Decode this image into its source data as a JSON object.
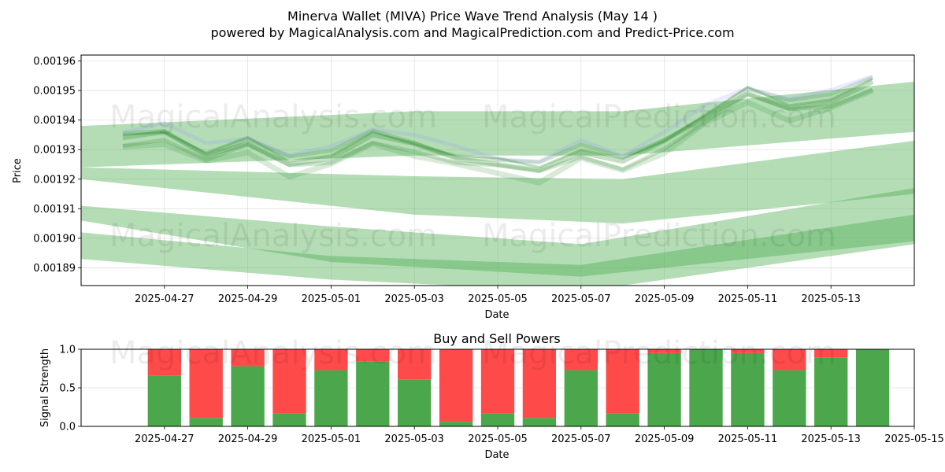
{
  "header": {
    "title": "Minerva Wallet (MIVA) Price Wave Trend Analysis (May 14 )",
    "subtitle": "powered by MagicalAnalysis.com and MagicalPrediction.com and Predict-Price.com"
  },
  "watermarks": [
    "MagicalAnalysis.com",
    "MagicalPrediction.com"
  ],
  "chart_data": [
    {
      "type": "line",
      "xlabel": "Date",
      "ylabel": "Price",
      "xlim": [
        "2025-04-25",
        "2025-05-15"
      ],
      "ylim": [
        0.001884,
        0.001962
      ],
      "x_ticks": [
        "2025-04-27",
        "2025-04-29",
        "2025-05-01",
        "2025-05-03",
        "2025-05-05",
        "2025-05-07",
        "2025-05-09",
        "2025-05-11",
        "2025-05-13"
      ],
      "y_ticks": [
        0.00189,
        0.0019,
        0.00191,
        0.00192,
        0.00193,
        0.00194,
        0.00195,
        0.00196
      ],
      "grid": true,
      "colors": {
        "band": "#4caf50",
        "wave": "#2e8b2e",
        "wave_alt": "#8f8fff"
      },
      "x": [
        "2025-04-26",
        "2025-04-27",
        "2025-04-28",
        "2025-04-29",
        "2025-04-30",
        "2025-05-01",
        "2025-05-02",
        "2025-05-03",
        "2025-05-04",
        "2025-05-05",
        "2025-05-06",
        "2025-05-07",
        "2025-05-08",
        "2025-05-09",
        "2025-05-10",
        "2025-05-11",
        "2025-05-12",
        "2025-05-13",
        "2025-05-14"
      ],
      "center": [
        0.001934,
        0.001936,
        0.001928,
        0.001932,
        0.001925,
        0.001927,
        0.001935,
        0.001932,
        0.001927,
        0.001925,
        0.001923,
        0.001929,
        0.001926,
        0.001933,
        0.001941,
        0.001949,
        0.001944,
        0.001946,
        0.001953
      ],
      "bands": [
        {
          "x": [
            "2025-04-25",
            "2025-05-03",
            "2025-05-08",
            "2025-05-15"
          ],
          "top": [
            0.001938,
            0.001943,
            0.001943,
            0.001953
          ],
          "bottom": [
            0.001924,
            0.001928,
            0.001928,
            0.001936
          ]
        },
        {
          "x": [
            "2025-04-25",
            "2025-05-03",
            "2025-05-08",
            "2025-05-15"
          ],
          "top": [
            0.001924,
            0.001921,
            0.00192,
            0.001933
          ],
          "bottom": [
            0.00192,
            0.001908,
            0.001905,
            0.001915
          ]
        },
        {
          "x": [
            "2025-04-25",
            "2025-05-01",
            "2025-05-07",
            "2025-05-15"
          ],
          "top": [
            0.001911,
            0.001904,
            0.001898,
            0.001917
          ],
          "bottom": [
            0.001906,
            0.001892,
            0.001887,
            0.001899
          ]
        },
        {
          "x": [
            "2025-04-25",
            "2025-05-01",
            "2025-05-07",
            "2025-05-15"
          ],
          "top": [
            0.001902,
            0.001894,
            0.001891,
            0.001908
          ],
          "bottom": [
            0.001893,
            0.001886,
            0.001882,
            0.001898
          ]
        }
      ]
    },
    {
      "type": "bar",
      "title": "Buy and Sell Powers",
      "xlabel": "Date",
      "ylabel": "Signal Strength",
      "xlim": [
        "2025-04-25",
        "2025-05-15"
      ],
      "ylim": [
        0,
        1.0
      ],
      "x_ticks": [
        "2025-04-27",
        "2025-04-29",
        "2025-05-01",
        "2025-05-03",
        "2025-05-05",
        "2025-05-07",
        "2025-05-09",
        "2025-05-11",
        "2025-05-13",
        "2025-05-15"
      ],
      "y_ticks": [
        "0.0",
        "0.5",
        "1.0"
      ],
      "grid": true,
      "colors": {
        "buy": "#4ca64c",
        "sell": "#ff4a4a"
      },
      "categories": [
        "2025-04-27",
        "2025-04-28",
        "2025-04-29",
        "2025-04-30",
        "2025-05-01",
        "2025-05-02",
        "2025-05-03",
        "2025-05-04",
        "2025-05-05",
        "2025-05-06",
        "2025-05-07",
        "2025-05-08",
        "2025-05-09",
        "2025-05-10",
        "2025-05-11",
        "2025-05-12",
        "2025-05-13",
        "2025-05-14"
      ],
      "series": [
        {
          "values": [
            0.66,
            0.11,
            0.78,
            0.17,
            0.73,
            0.84,
            0.61,
            0.06,
            0.17,
            0.11,
            0.73,
            0.17,
            0.95,
            1.0,
            0.95,
            0.73,
            0.89,
            1.0
          ]
        },
        {
          "values": [
            0.34,
            0.89,
            0.22,
            0.83,
            0.27,
            0.16,
            0.39,
            0.94,
            0.83,
            0.89,
            0.27,
            0.83,
            0.05,
            0.0,
            0.05,
            0.27,
            0.11,
            0.0
          ]
        }
      ]
    }
  ]
}
